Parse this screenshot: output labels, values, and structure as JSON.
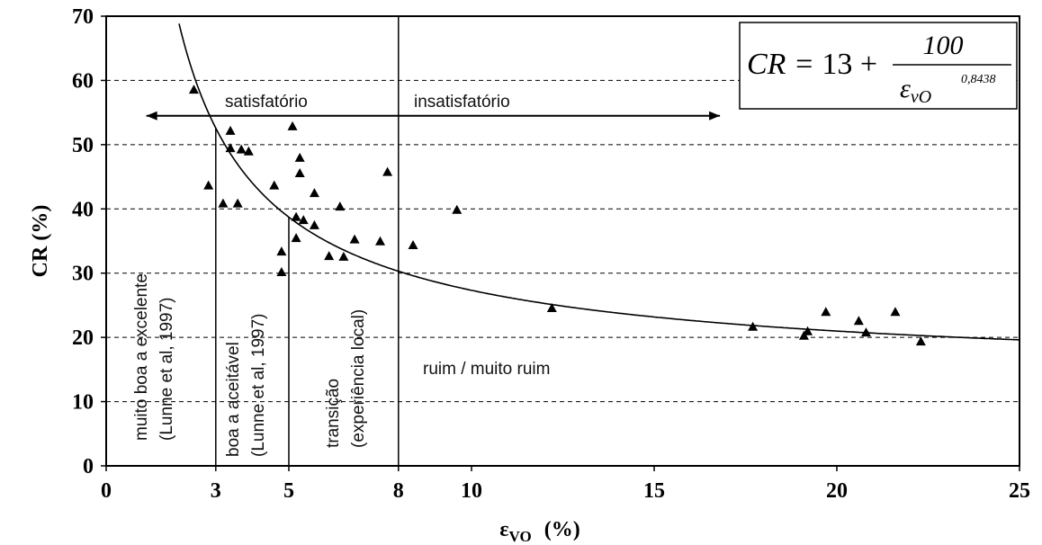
{
  "chart_data": {
    "type": "scatter",
    "ylabel": "CR (%)",
    "xlabel": {
      "symbol": "ε",
      "sub": "VO",
      "unit": "(%)"
    },
    "x": [
      2.4,
      2.8,
      3.2,
      3.4,
      3.4,
      3.6,
      3.7,
      3.9,
      4.6,
      4.8,
      4.8,
      5.1,
      5.2,
      5.2,
      5.3,
      5.3,
      5.4,
      5.7,
      5.7,
      6.1,
      6.4,
      6.5,
      6.8,
      7.5,
      7.7,
      8.4,
      9.6,
      12.2,
      17.7,
      19.1,
      19.2,
      19.7,
      20.6,
      20.8,
      21.6,
      22.3
    ],
    "values": [
      58.5,
      43.6,
      40.8,
      52.1,
      49.4,
      40.8,
      49.2,
      48.9,
      43.6,
      33.3,
      30.1,
      52.8,
      38.7,
      35.4,
      47.9,
      45.5,
      38.2,
      42.4,
      37.4,
      32.6,
      40.3,
      32.5,
      35.2,
      34.9,
      45.7,
      34.3,
      39.8,
      24.5,
      21.6,
      20.2,
      20.9,
      23.9,
      22.5,
      20.7,
      23.9,
      19.3
    ],
    "color": "#000000",
    "xlim": [
      0,
      25
    ],
    "xticks": [
      0,
      3,
      5,
      8,
      10,
      15,
      20,
      25
    ],
    "ylim": [
      0,
      70
    ],
    "yticks": [
      0,
      10,
      20,
      30,
      40,
      50,
      60,
      70
    ],
    "grid": true,
    "formula": {
      "lhs": "CR = ",
      "constant": 13,
      "plus": " +",
      "numerator": 100,
      "denominator": "ε",
      "denominator_sub": "vO",
      "exponent": {
        "value": 0.8438,
        "label": "0,8438"
      }
    },
    "vlines": [
      [
        3,
        52.6
      ],
      [
        5,
        38.7
      ],
      [
        8,
        70
      ]
    ],
    "arrow": {
      "y": 54.5,
      "x": [
        1.1,
        16.8
      ]
    },
    "annotations": {
      "satisfactory": "satisfatório",
      "unsatisfactory": "insatisfatório",
      "poor": "ruim / muito ruim",
      "zone1": [
        "muito boa a excelente",
        "(Lunne et al, 1997)"
      ],
      "zone2": [
        "boa a aceitável",
        "(Lunne et al, 1997)"
      ],
      "zone3": [
        "transição",
        "(experiência local)"
      ]
    }
  }
}
